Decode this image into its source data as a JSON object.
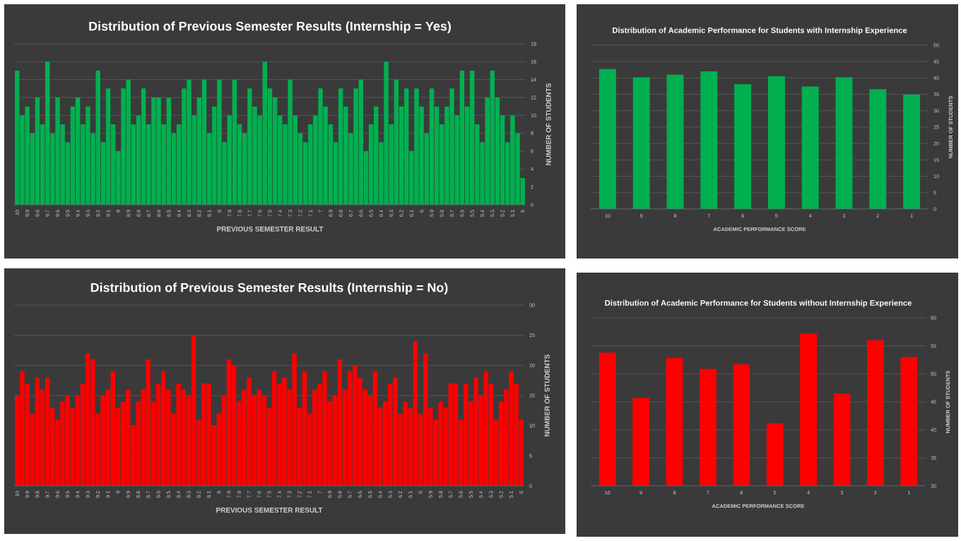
{
  "chart_data": [
    {
      "type": "bar",
      "title": "Distribution of Previous Semester Results (Internship = Yes)",
      "xlabel": "PREVIOUS SEMESTER RESULT",
      "ylabel": "NUMBER OF STUDENTS",
      "color": "#00b050",
      "grid": "y",
      "x": [
        10,
        9.95,
        9.9,
        9.85,
        9.8,
        9.75,
        9.7,
        9.65,
        9.6,
        9.55,
        9.5,
        9.45,
        9.4,
        9.35,
        9.3,
        9.25,
        9.2,
        9.15,
        9.1,
        9.05,
        9,
        8.95,
        8.9,
        8.85,
        8.8,
        8.75,
        8.7,
        8.65,
        8.6,
        8.55,
        8.5,
        8.45,
        8.4,
        8.35,
        8.3,
        8.25,
        8.2,
        8.15,
        8.1,
        8.05,
        8,
        7.95,
        7.9,
        7.85,
        7.8,
        7.75,
        7.7,
        7.65,
        7.6,
        7.55,
        7.5,
        7.45,
        7.4,
        7.35,
        7.3,
        7.25,
        7.2,
        7.15,
        7.1,
        7.05,
        7,
        6.95,
        6.9,
        6.85,
        6.8,
        6.75,
        6.7,
        6.65,
        6.6,
        6.55,
        6.5,
        6.45,
        6.4,
        6.35,
        6.3,
        6.25,
        6.2,
        6.15,
        6.1,
        6.05,
        6,
        5.95,
        5.9,
        5.85,
        5.8,
        5.75,
        5.7,
        5.65,
        5.6,
        5.55,
        5.5,
        5.45,
        5.4,
        5.35,
        5.3,
        5.25,
        5.2,
        5.15,
        5.1,
        5.05,
        5
      ],
      "values": [
        15,
        10,
        11,
        8,
        12,
        9,
        16,
        8,
        12,
        9,
        7,
        11,
        12,
        9,
        11,
        8,
        15,
        7,
        13,
        9,
        6,
        13,
        14,
        9,
        10,
        13,
        9,
        12,
        12,
        9,
        12,
        8,
        9,
        13,
        14,
        10,
        12,
        14,
        8,
        11,
        14,
        7,
        10,
        14,
        9,
        8,
        13,
        11,
        10,
        16,
        13,
        12,
        10,
        9,
        14,
        10,
        8,
        7,
        9,
        10,
        13,
        11,
        9,
        7,
        13,
        11,
        8,
        13,
        14,
        6,
        9,
        11,
        7,
        16,
        9,
        14,
        11,
        13,
        6,
        13,
        11,
        8,
        13,
        11,
        9,
        11,
        13,
        10,
        15,
        11,
        15,
        9,
        7,
        12,
        15,
        12,
        10,
        7,
        10,
        8,
        3
      ],
      "xlim": [
        10.03,
        4.97
      ],
      "xticks": [
        10,
        9.9,
        9.8,
        9.7,
        9.6,
        9.5,
        9.4,
        9.3,
        9.2,
        9.1,
        9,
        8.9,
        8.8,
        8.7,
        8.6,
        8.5,
        8.4,
        8.3,
        8.2,
        8.1,
        8,
        7.9,
        7.8,
        7.7,
        7.6,
        7.5,
        7.4,
        7.3,
        7.2,
        7.1,
        7,
        6.9,
        6.8,
        6.7,
        6.6,
        6.5,
        6.4,
        6.3,
        6.2,
        6.1,
        6,
        5.9,
        5.8,
        5.7,
        5.6,
        5.5,
        5.4,
        5.3,
        5.2,
        5.1,
        5
      ],
      "ylim": [
        0,
        18
      ],
      "yticks": [
        0,
        2,
        4,
        6,
        8,
        10,
        12,
        14,
        16,
        18
      ]
    },
    {
      "type": "bar",
      "title": "Distribution of Academic Performance for Students with Internship Experience",
      "xlabel": "ACADEMIC PERFORMANCE SCORE",
      "ylabel": "NUMBER OF STUDENTS",
      "color": "#00b050",
      "grid": "y",
      "categories": [
        "10",
        "9",
        "8",
        "7",
        "6",
        "5",
        "4",
        "3",
        "2",
        "1"
      ],
      "values": [
        42.7,
        40.2,
        41,
        42,
        38.1,
        40.5,
        37.4,
        40.2,
        36.6,
        34.9
      ],
      "ylim": [
        0,
        50
      ],
      "yticks": [
        0,
        5,
        10,
        15,
        20,
        25,
        30,
        35,
        40,
        45,
        50
      ]
    },
    {
      "type": "bar",
      "title": "Distribution of Previous Semester Results (Internship = No)",
      "xlabel": "PREVIOUS SEMESTER RESULT",
      "ylabel": "NUMBER OF STUDENTS",
      "color": "#ff0000",
      "grid": "y",
      "x": [
        10,
        9.95,
        9.9,
        9.85,
        9.8,
        9.75,
        9.7,
        9.65,
        9.6,
        9.55,
        9.5,
        9.45,
        9.4,
        9.35,
        9.3,
        9.25,
        9.2,
        9.15,
        9.1,
        9.05,
        9,
        8.95,
        8.9,
        8.85,
        8.8,
        8.75,
        8.7,
        8.65,
        8.6,
        8.55,
        8.5,
        8.45,
        8.4,
        8.35,
        8.3,
        8.25,
        8.2,
        8.15,
        8.1,
        8.05,
        8,
        7.95,
        7.9,
        7.85,
        7.8,
        7.75,
        7.7,
        7.65,
        7.6,
        7.55,
        7.5,
        7.45,
        7.4,
        7.35,
        7.3,
        7.25,
        7.2,
        7.15,
        7.1,
        7.05,
        7,
        6.95,
        6.9,
        6.85,
        6.8,
        6.75,
        6.7,
        6.65,
        6.6,
        6.55,
        6.5,
        6.45,
        6.4,
        6.35,
        6.3,
        6.25,
        6.2,
        6.15,
        6.1,
        6.05,
        6,
        5.95,
        5.9,
        5.85,
        5.8,
        5.75,
        5.7,
        5.65,
        5.6,
        5.55,
        5.5,
        5.45,
        5.4,
        5.35,
        5.3,
        5.25,
        5.2,
        5.15,
        5.1,
        5.05,
        5
      ],
      "values": [
        15,
        19,
        17,
        12,
        18,
        16,
        18,
        13,
        11,
        14,
        15,
        13,
        15,
        17,
        22,
        21,
        12,
        15,
        16,
        19,
        13,
        14,
        16,
        10,
        14,
        16,
        21,
        14,
        17,
        19,
        16,
        12,
        17,
        16,
        15,
        25,
        11,
        17,
        17,
        10,
        12,
        15,
        21,
        20,
        14,
        16,
        18,
        15,
        16,
        15,
        13,
        19,
        17,
        18,
        16,
        22,
        13,
        19,
        12,
        16,
        17,
        19,
        14,
        15,
        21,
        16,
        19,
        20,
        18,
        16,
        15,
        19,
        13,
        14,
        17,
        18,
        12,
        14,
        13,
        24,
        12,
        22,
        13,
        11,
        14,
        13,
        17,
        17,
        11,
        17,
        14,
        18,
        15,
        19,
        17,
        11,
        14,
        16,
        19,
        17,
        11
      ],
      "xlim": [
        10.03,
        4.97
      ],
      "xticks": [
        10,
        9.9,
        9.8,
        9.7,
        9.6,
        9.5,
        9.4,
        9.3,
        9.2,
        9.1,
        9,
        8.9,
        8.8,
        8.7,
        8.6,
        8.5,
        8.4,
        8.3,
        8.2,
        8.1,
        8,
        7.9,
        7.8,
        7.7,
        7.6,
        7.5,
        7.4,
        7.3,
        7.2,
        7.1,
        7,
        6.9,
        6.8,
        6.7,
        6.6,
        6.5,
        6.4,
        6.3,
        6.2,
        6.1,
        6,
        5.9,
        5.8,
        5.7,
        5.6,
        5.5,
        5.4,
        5.3,
        5.2,
        5.1,
        5
      ],
      "ylim": [
        0,
        30
      ],
      "yticks": [
        0,
        5,
        10,
        15,
        20,
        25,
        30
      ]
    },
    {
      "type": "bar",
      "title": "Distribution of Academic Performance for Students without Internship Experience",
      "xlabel": "ACADEMIC PERFORMANCE SCORE",
      "ylabel": "NUMBER OF STUDENTS",
      "color": "#ff0000",
      "grid": "y",
      "categories": [
        "10",
        "9",
        "8",
        "7",
        "6",
        "5",
        "4",
        "3",
        "2",
        "1"
      ],
      "values": [
        53.8,
        45.7,
        52.8,
        50.9,
        51.7,
        41.2,
        57.2,
        46.5,
        56,
        53
      ],
      "ylim": [
        30,
        60
      ],
      "yticks": [
        30,
        35,
        40,
        45,
        50,
        55,
        60
      ]
    }
  ]
}
